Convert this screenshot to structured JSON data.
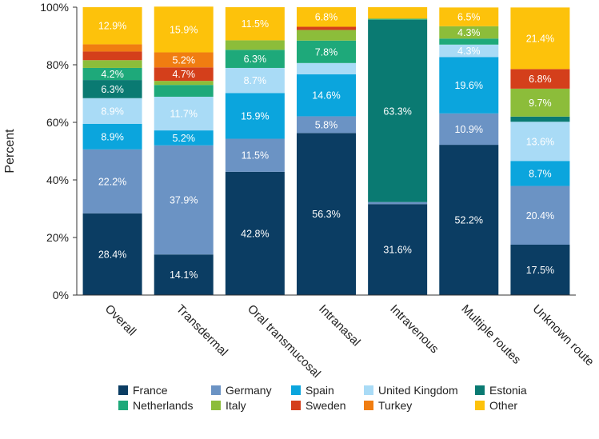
{
  "chart_data": {
    "type": "bar",
    "stacked": true,
    "title": "",
    "xlabel": "",
    "ylabel": "Percent",
    "ylim": [
      0,
      100
    ],
    "yticks": [
      0,
      20,
      40,
      60,
      80,
      100
    ],
    "ytick_labels": [
      "0%",
      "20%",
      "40%",
      "60%",
      "80%",
      "100%"
    ],
    "grid": false,
    "legend_position": "bottom",
    "categories": [
      "Overall",
      "Transdermal",
      "Oral transmucosal",
      "Intranasal",
      "Intravenous",
      "Multiple routes",
      "Unknown route"
    ],
    "series": [
      {
        "name": "France",
        "color": "#0b3d63",
        "values": [
          28.4,
          14.1,
          42.8,
          56.3,
          31.6,
          52.2,
          17.5
        ],
        "labels": [
          "28.4%",
          "14.1%",
          "42.8%",
          "56.3%",
          "31.6%",
          "52.2%",
          "17.5%"
        ]
      },
      {
        "name": "Germany",
        "color": "#6b93c4",
        "values": [
          22.2,
          37.9,
          11.5,
          5.8,
          0.7,
          10.9,
          20.4
        ],
        "labels": [
          "22.2%",
          "37.9%",
          "11.5%",
          "5.8%",
          "",
          "10.9%",
          "20.4%"
        ]
      },
      {
        "name": "Spain",
        "color": "#0ba5dd",
        "values": [
          8.9,
          5.2,
          15.9,
          14.6,
          0,
          19.6,
          8.7
        ],
        "labels": [
          "8.9%",
          "5.2%",
          "15.9%",
          "14.6%",
          "",
          "19.6%",
          "8.7%"
        ]
      },
      {
        "name": "United Kingdom",
        "color": "#a9dbf6",
        "values": [
          8.9,
          11.7,
          8.7,
          3.9,
          0,
          4.3,
          13.6
        ],
        "labels": [
          "8.9%",
          "11.7%",
          "8.7%",
          "",
          "",
          "4.3%",
          "13.6%"
        ]
      },
      {
        "name": "Estonia",
        "color": "#0a7a72",
        "values": [
          6.3,
          0,
          0,
          0,
          63.3,
          0,
          1.8
        ],
        "labels": [
          "6.3%",
          "",
          "",
          "",
          "63.3%",
          "",
          ""
        ]
      },
      {
        "name": "Netherlands",
        "color": "#1ea97a",
        "values": [
          4.2,
          4.1,
          6.3,
          7.8,
          0.4,
          2.1,
          0
        ],
        "labels": [
          "4.2%",
          "",
          "6.3%",
          "7.8%",
          "",
          "",
          ""
        ]
      },
      {
        "name": "Italy",
        "color": "#8cbd3a",
        "values": [
          2.7,
          1.4,
          3.3,
          3.7,
          0,
          4.3,
          9.7
        ],
        "labels": [
          "",
          "",
          "",
          "",
          "",
          "4.3%",
          "9.7%"
        ]
      },
      {
        "name": "Sweden",
        "color": "#d43f1b",
        "values": [
          3.0,
          4.7,
          0,
          1.1,
          0,
          0,
          6.8
        ],
        "labels": [
          "",
          "4.7%",
          "",
          "",
          "",
          "",
          "6.8%"
        ]
      },
      {
        "name": "Turkey",
        "color": "#f07d11",
        "values": [
          2.5,
          5.2,
          0,
          0,
          0,
          0,
          0
        ],
        "labels": [
          "",
          "5.2%",
          "",
          "",
          "",
          "",
          ""
        ]
      },
      {
        "name": "Other",
        "color": "#fdc20b",
        "values": [
          12.9,
          15.9,
          11.5,
          6.8,
          4.0,
          6.5,
          21.4
        ],
        "labels": [
          "12.9%",
          "15.9%",
          "11.5%",
          "6.8%",
          "",
          "6.5%",
          "21.4%"
        ]
      }
    ],
    "legend_order": [
      "France",
      "Germany",
      "Spain",
      "United Kingdom",
      "Estonia",
      "Netherlands",
      "Italy",
      "Sweden",
      "Turkey",
      "Other"
    ]
  }
}
